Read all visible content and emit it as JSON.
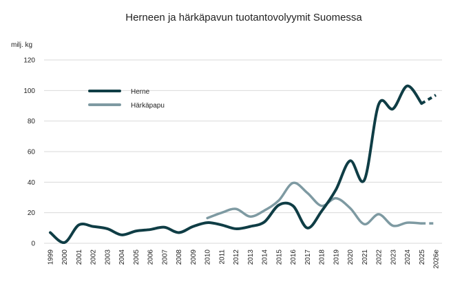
{
  "chart_data": {
    "type": "line",
    "title": "Herneen ja härkäpavun tuotantovolyymit Suomessa",
    "unit_label": "milj. kg",
    "ylim": [
      0,
      120
    ],
    "yticks": [
      0,
      20,
      40,
      60,
      80,
      100,
      120
    ],
    "grid": true,
    "legend_position": "top-left",
    "categories": [
      "1999",
      "2000",
      "2001",
      "2002",
      "2003",
      "2004",
      "2005",
      "2006",
      "2007",
      "2008",
      "2009",
      "2010",
      "2011",
      "2012",
      "2013",
      "2014",
      "2015",
      "2016",
      "2017",
      "2018",
      "2019",
      "2020",
      "2021",
      "2022",
      "2023",
      "2024",
      "2025",
      "2026e"
    ],
    "series": [
      {
        "name": "Herne",
        "color": "#0f3d45",
        "values": [
          7,
          0.5,
          12,
          11,
          9.5,
          5.5,
          8,
          9,
          10.5,
          7,
          11,
          13.5,
          12,
          9.5,
          11,
          14,
          25,
          24.5,
          10,
          21,
          35,
          54,
          41.5,
          91,
          88,
          103,
          91.5,
          97
        ],
        "estimate_from_index": 26
      },
      {
        "name": "Härkäpapu",
        "color": "#7e9aa2",
        "values": [
          null,
          null,
          null,
          null,
          null,
          null,
          null,
          null,
          null,
          null,
          null,
          16.5,
          20,
          22.5,
          17.5,
          21.5,
          28,
          39.5,
          33,
          24.5,
          29.5,
          23,
          12.5,
          19,
          11.5,
          13.5,
          13,
          13
        ],
        "estimate_from_index": 26
      }
    ]
  }
}
